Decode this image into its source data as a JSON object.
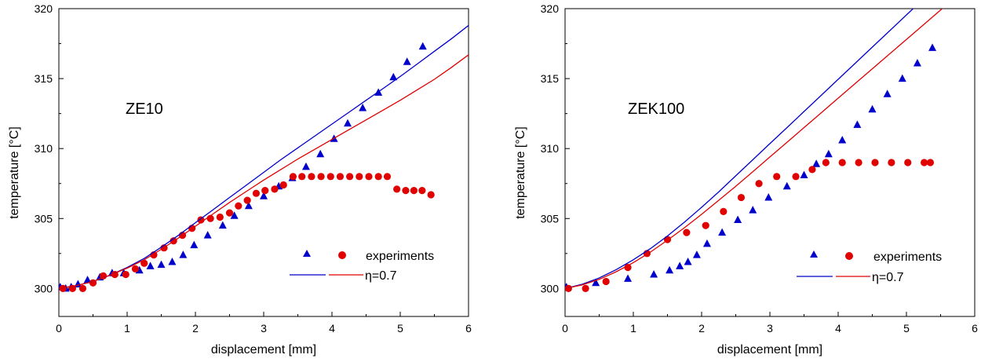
{
  "colors": {
    "blue": "#0000cc",
    "red": "#e00000",
    "axis": "#000000"
  },
  "chart_data": [
    {
      "type": "scatter",
      "title": "",
      "annotation": "ZE10",
      "xlabel": "displacement [mm]",
      "ylabel": "temperature [°C]",
      "xlim": [
        0,
        6
      ],
      "ylim": [
        298,
        320
      ],
      "xticks": [
        "0",
        "1",
        "2",
        "3",
        "4",
        "5",
        "6"
      ],
      "yticks": [
        "300",
        "305",
        "310",
        "315",
        "320"
      ],
      "legend": {
        "position": "bottom-right",
        "experiments_label": "experiments",
        "model_label": "η=0.7"
      },
      "series": [
        {
          "marker": "triangle",
          "color": "blue",
          "x": [
            0.02,
            0.1,
            0.18,
            0.28,
            0.42,
            0.6,
            0.78,
            0.95,
            1.18,
            1.34,
            1.5,
            1.66,
            1.82,
            1.98,
            2.18,
            2.4,
            2.57,
            2.78,
            3.0,
            3.22,
            3.42,
            3.62,
            3.83,
            4.03,
            4.23,
            4.45,
            4.68,
            4.9,
            5.1,
            5.33
          ],
          "y": [
            300.1,
            300.0,
            300.1,
            300.3,
            300.6,
            300.8,
            301.1,
            301.1,
            301.3,
            301.6,
            301.7,
            301.9,
            302.4,
            303.1,
            303.8,
            304.5,
            305.2,
            305.9,
            306.6,
            307.3,
            307.9,
            308.7,
            309.6,
            310.7,
            311.8,
            312.9,
            314.0,
            315.1,
            316.2,
            317.3
          ]
        },
        {
          "marker": "circle",
          "color": "red",
          "x": [
            0.06,
            0.2,
            0.35,
            0.5,
            0.65,
            0.82,
            0.98,
            1.12,
            1.25,
            1.39,
            1.54,
            1.68,
            1.81,
            1.95,
            2.08,
            2.22,
            2.36,
            2.5,
            2.63,
            2.76,
            2.89,
            3.02,
            3.16,
            3.29,
            3.43,
            3.56,
            3.7,
            3.84,
            3.98,
            4.12,
            4.26,
            4.4,
            4.54,
            4.68,
            4.81,
            4.95,
            5.08,
            5.2,
            5.32,
            5.45
          ],
          "y": [
            300.0,
            300.0,
            300.0,
            300.4,
            300.9,
            301.0,
            301.0,
            301.4,
            301.8,
            302.4,
            302.9,
            303.4,
            303.8,
            304.3,
            304.9,
            305.0,
            305.1,
            305.4,
            305.9,
            306.3,
            306.8,
            307.0,
            307.1,
            307.4,
            308.0,
            308.0,
            308.0,
            308.0,
            308.0,
            308.0,
            308.0,
            308.0,
            308.0,
            308.0,
            308.0,
            307.1,
            307.0,
            307.0,
            307.0,
            306.7
          ]
        },
        {
          "type": "line",
          "color": "blue",
          "x": [
            0,
            0.25,
            0.5,
            0.75,
            1.0,
            1.25,
            1.5,
            1.75,
            2.0,
            2.25,
            2.5,
            2.75,
            3.0,
            3.25,
            3.5,
            3.75,
            4.0,
            4.25,
            4.5,
            4.75,
            5.0,
            5.25,
            5.5,
            5.75,
            6.0
          ],
          "y": [
            300.0,
            300.2,
            300.5,
            300.95,
            301.5,
            302.15,
            302.95,
            303.8,
            304.7,
            305.6,
            306.5,
            307.4,
            308.3,
            309.2,
            310.05,
            310.9,
            311.75,
            312.6,
            313.45,
            314.3,
            315.15,
            316.05,
            316.95,
            317.85,
            318.8
          ]
        },
        {
          "type": "line",
          "color": "red",
          "x": [
            0,
            0.25,
            0.5,
            0.75,
            1.0,
            1.25,
            1.5,
            1.75,
            2.0,
            2.25,
            2.5,
            2.75,
            3.0,
            3.25,
            3.5,
            3.75,
            4.0,
            4.25,
            4.5,
            4.75,
            5.0,
            5.25,
            5.5,
            5.75,
            6.0
          ],
          "y": [
            300.0,
            300.2,
            300.5,
            300.95,
            301.45,
            302.05,
            302.8,
            303.6,
            304.45,
            305.3,
            306.15,
            306.95,
            307.75,
            308.5,
            309.25,
            309.95,
            310.65,
            311.35,
            312.05,
            312.75,
            313.45,
            314.2,
            314.95,
            315.8,
            316.7
          ]
        }
      ]
    },
    {
      "type": "scatter",
      "title": "",
      "annotation": "ZEK100",
      "xlabel": "displacement [mm]",
      "ylabel": "temperature [°C]",
      "xlim": [
        0,
        6
      ],
      "ylim": [
        298,
        320
      ],
      "xticks": [
        "0",
        "1",
        "2",
        "3",
        "4",
        "5",
        "6"
      ],
      "yticks": [
        "300",
        "305",
        "310",
        "315",
        "320"
      ],
      "legend": {
        "position": "bottom-right",
        "experiments_label": "experiments",
        "model_label": "η=0.7"
      },
      "series": [
        {
          "marker": "triangle",
          "color": "blue",
          "x": [
            0.02,
            0.45,
            0.92,
            1.3,
            1.53,
            1.68,
            1.8,
            1.93,
            2.08,
            2.3,
            2.53,
            2.75,
            2.98,
            3.25,
            3.5,
            3.68,
            3.86,
            4.06,
            4.28,
            4.5,
            4.72,
            4.94,
            5.16,
            5.38
          ],
          "y": [
            300.1,
            300.4,
            300.7,
            301.0,
            301.3,
            301.6,
            301.9,
            302.4,
            303.2,
            304.0,
            304.9,
            305.6,
            306.5,
            307.3,
            308.1,
            308.9,
            309.6,
            310.6,
            311.7,
            312.8,
            313.9,
            315.0,
            316.1,
            317.2
          ]
        },
        {
          "marker": "circle",
          "color": "red",
          "x": [
            0.05,
            0.3,
            0.6,
            0.92,
            1.2,
            1.5,
            1.78,
            2.06,
            2.32,
            2.58,
            2.84,
            3.1,
            3.38,
            3.62,
            3.82,
            4.06,
            4.3,
            4.54,
            4.78,
            5.02,
            5.26,
            5.35
          ],
          "y": [
            300.0,
            300.0,
            300.5,
            301.5,
            302.5,
            303.5,
            304.0,
            304.5,
            305.5,
            306.5,
            307.5,
            308.0,
            308.0,
            308.5,
            309.0,
            309.0,
            309.0,
            309.0,
            309.0,
            309.0,
            309.0,
            309.0
          ]
        },
        {
          "type": "line",
          "color": "blue",
          "x": [
            0,
            0.25,
            0.5,
            0.75,
            1.0,
            1.25,
            1.5,
            1.75,
            2.0,
            2.25,
            2.5,
            2.75,
            3.0,
            3.25,
            3.5,
            3.75,
            4.0,
            4.25,
            4.5,
            4.75,
            5.0,
            5.25,
            5.45
          ],
          "y": [
            300.0,
            300.3,
            300.75,
            301.35,
            302.05,
            302.85,
            303.75,
            304.75,
            305.8,
            306.9,
            308.05,
            309.2,
            310.35,
            311.5,
            312.65,
            313.8,
            314.95,
            316.1,
            317.25,
            318.4,
            319.55,
            320.7,
            321.6
          ]
        },
        {
          "type": "line",
          "color": "red",
          "x": [
            0,
            0.25,
            0.5,
            0.75,
            1.0,
            1.25,
            1.5,
            1.75,
            2.0,
            2.25,
            2.5,
            2.75,
            3.0,
            3.25,
            3.5,
            3.75,
            4.0,
            4.25,
            4.5,
            4.75,
            5.0,
            5.25,
            5.5,
            5.75,
            6.0
          ],
          "y": [
            300.0,
            300.25,
            300.65,
            301.2,
            301.85,
            302.6,
            303.45,
            304.35,
            305.3,
            306.3,
            307.3,
            308.35,
            309.4,
            310.45,
            311.5,
            312.55,
            313.6,
            314.65,
            315.7,
            316.75,
            317.8,
            318.85,
            319.9,
            320.95,
            322.0
          ]
        }
      ]
    }
  ]
}
